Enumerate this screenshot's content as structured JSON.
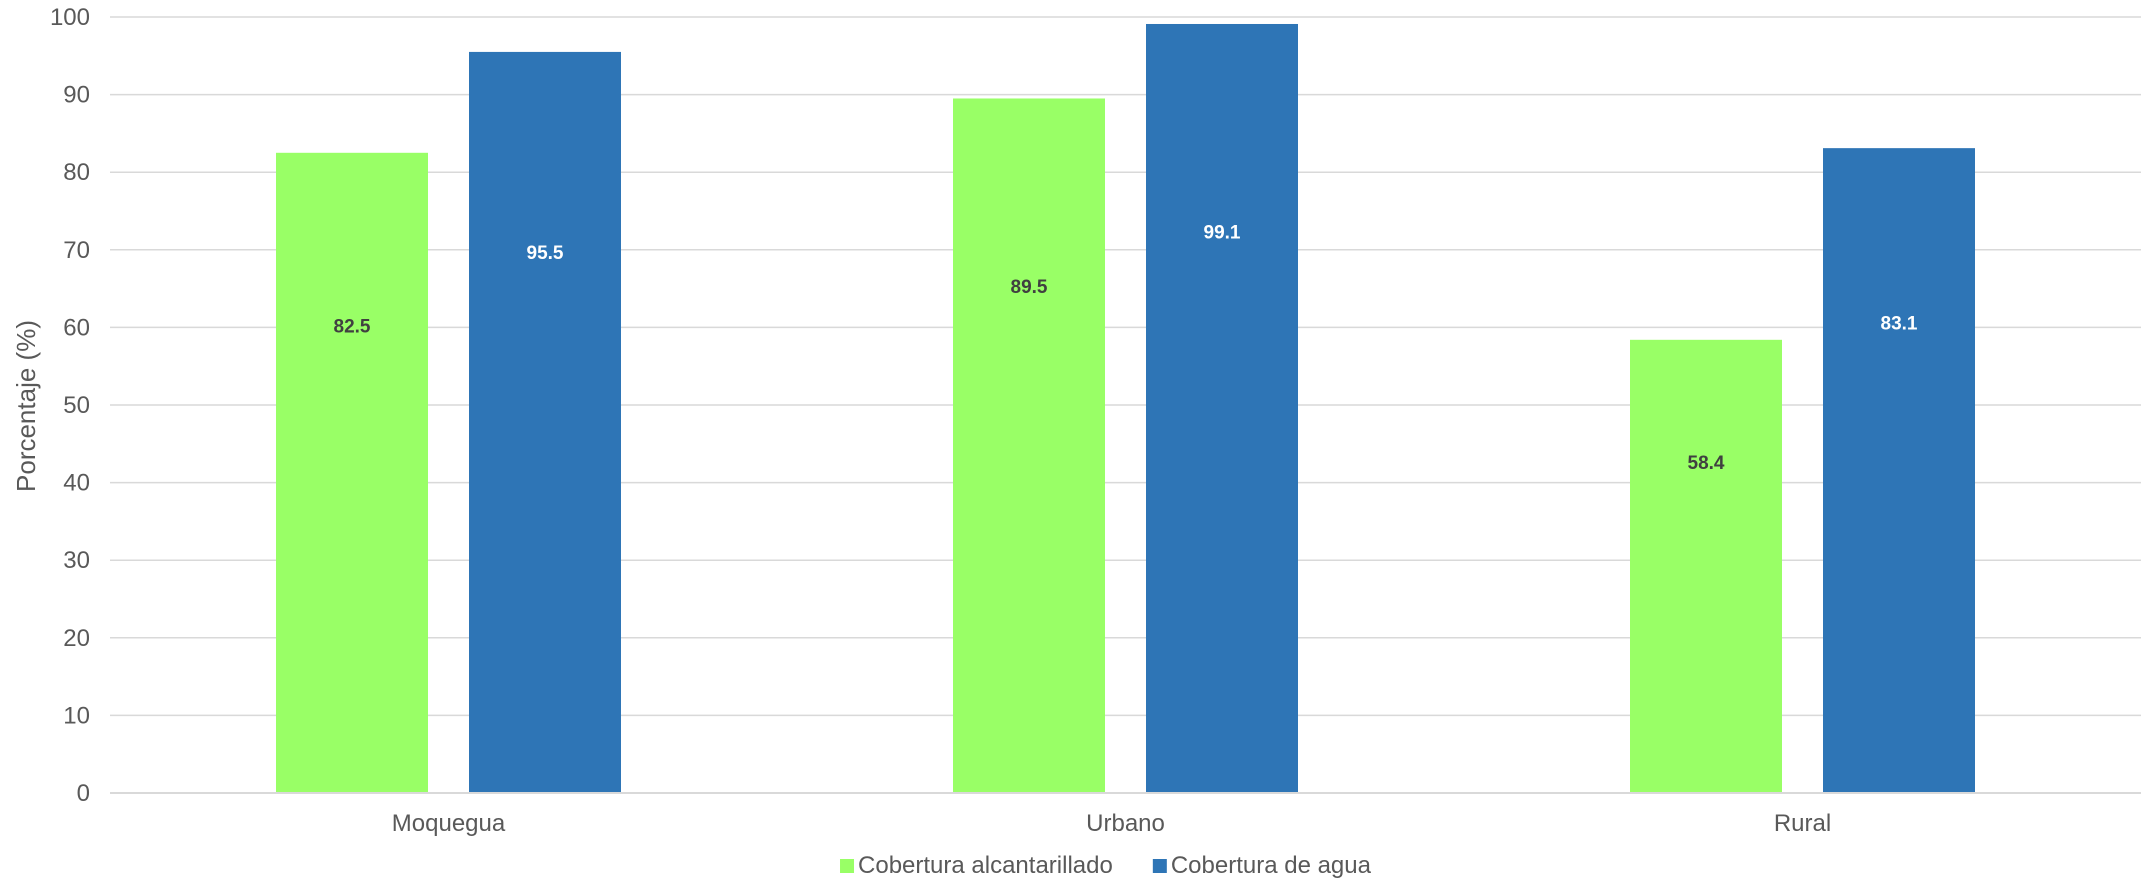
{
  "chart_data": {
    "type": "bar",
    "categories": [
      "Moquegua",
      "Urbano",
      "Rural"
    ],
    "series": [
      {
        "name": "Cobertura alcantarillado",
        "values": [
          82.5,
          89.5,
          58.4
        ],
        "color": "#99FF66",
        "label_color": "#404040"
      },
      {
        "name": "Cobertura de agua",
        "values": [
          95.5,
          99.1,
          83.1
        ],
        "color": "#2E75B6",
        "label_color": "#FFFFFF"
      }
    ],
    "title": "",
    "xlabel": "",
    "ylabel": "Porcentaje (%)",
    "ylim": [
      0,
      100
    ],
    "yticks": [
      0,
      10,
      20,
      30,
      40,
      50,
      60,
      70,
      80,
      90,
      100
    ],
    "grid": true,
    "legend_position": "bottom-center",
    "data_labels": true
  },
  "colors": {
    "grid": "#D9D9D9",
    "axis": "#D9D9D9",
    "text": "#595959"
  }
}
